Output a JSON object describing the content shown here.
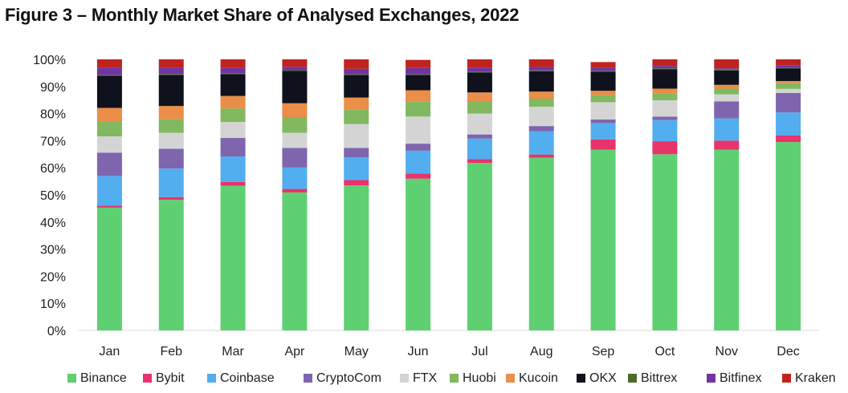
{
  "title": "Figure 3 – Monthly Market Share of Analysed Exchanges, 2022",
  "chart_data": {
    "type": "bar",
    "stacked": true,
    "categories": [
      "Jan",
      "Feb",
      "Mar",
      "Apr",
      "May",
      "Jun",
      "Jul",
      "Aug",
      "Sep",
      "Oct",
      "Nov",
      "Dec"
    ],
    "y_ticks": [
      "0%",
      "10%",
      "20%",
      "30%",
      "40%",
      "50%",
      "60%",
      "70%",
      "80%",
      "90%",
      "100%"
    ],
    "ylim": [
      0,
      100
    ],
    "legend_position": "bottom",
    "series": [
      {
        "name": "Binance",
        "color": "#5ed072",
        "values": [
          45.3,
          48.2,
          53.4,
          50.9,
          53.5,
          56.0,
          61.8,
          63.7,
          66.7,
          65.0,
          66.7,
          69.5
        ]
      },
      {
        "name": "Bybit",
        "color": "#e8336b",
        "values": [
          0.7,
          1.0,
          1.4,
          1.3,
          2.0,
          1.9,
          1.4,
          1.2,
          3.8,
          4.8,
          3.3,
          2.4
        ]
      },
      {
        "name": "Coinbase",
        "color": "#52aeee",
        "values": [
          11.0,
          10.5,
          9.4,
          7.9,
          8.4,
          8.4,
          7.6,
          8.6,
          6.0,
          7.8,
          8.2,
          8.5
        ]
      },
      {
        "name": "CryptoCom",
        "color": "#7e65ae",
        "values": [
          8.6,
          7.3,
          6.8,
          7.2,
          3.4,
          2.6,
          1.5,
          1.9,
          1.3,
          1.3,
          6.3,
          7.2
        ]
      },
      {
        "name": "FTX",
        "color": "#d4d4d4",
        "values": [
          6.0,
          5.9,
          5.9,
          5.6,
          8.8,
          10.0,
          7.7,
          7.1,
          6.4,
          6.0,
          2.6,
          1.5
        ]
      },
      {
        "name": "Huobi",
        "color": "#82b860",
        "values": [
          5.6,
          5.1,
          5.0,
          5.8,
          5.3,
          5.5,
          4.6,
          3.0,
          2.6,
          2.5,
          2.1,
          2.1
        ]
      },
      {
        "name": "Kucoin",
        "color": "#ea8e48",
        "values": [
          4.9,
          4.8,
          4.6,
          5.1,
          4.5,
          4.2,
          3.2,
          2.6,
          1.6,
          1.8,
          1.4,
          0.8
        ]
      },
      {
        "name": "OKX",
        "color": "#0f121c",
        "values": [
          11.9,
          11.5,
          8.1,
          11.9,
          8.3,
          5.6,
          7.4,
          7.5,
          7.1,
          7.2,
          5.3,
          4.7
        ]
      },
      {
        "name": "Bittrex",
        "color": "#4e6a2c",
        "values": [
          0.3,
          0.3,
          0.3,
          0.3,
          0.3,
          0.3,
          0.3,
          0.3,
          0.3,
          0.3,
          0.3,
          0.3
        ]
      },
      {
        "name": "Bitfinex",
        "color": "#7134a2",
        "values": [
          2.7,
          2.4,
          1.9,
          1.3,
          2.0,
          2.3,
          1.5,
          1.3,
          1.2,
          0.9,
          0.5,
          0.7
        ]
      },
      {
        "name": "Kraken",
        "color": "#c0231e",
        "values": [
          3.0,
          3.0,
          3.2,
          2.7,
          3.5,
          3.0,
          3.0,
          2.8,
          2.0,
          2.4,
          3.3,
          2.3
        ]
      }
    ]
  }
}
